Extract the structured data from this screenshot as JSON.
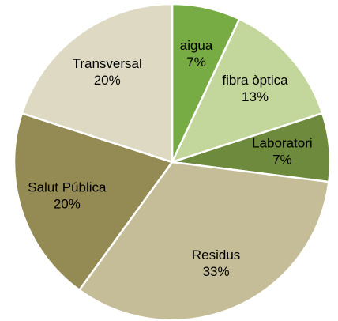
{
  "chart_data": {
    "type": "pie",
    "categories": [
      "aigua",
      "fibra òptica",
      "Laboratori",
      "Residus",
      "Salut Pública",
      "Transversal"
    ],
    "values": [
      7,
      13,
      7,
      33,
      20,
      20
    ],
    "value_labels": [
      "7%",
      "13%",
      "7%",
      "33%",
      "20%",
      "20%"
    ],
    "colors": [
      "#77ab43",
      "#c3d69b",
      "#6e8a3c",
      "#c4bd97",
      "#948a54",
      "#ddd9c3"
    ]
  }
}
